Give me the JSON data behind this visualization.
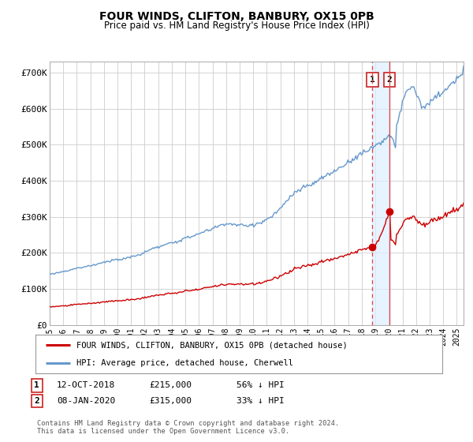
{
  "title": "FOUR WINDS, CLIFTON, BANBURY, OX15 0PB",
  "subtitle": "Price paid vs. HM Land Registry's House Price Index (HPI)",
  "ylabel_ticks": [
    "£0",
    "£100K",
    "£200K",
    "£300K",
    "£400K",
    "£500K",
    "£600K",
    "£700K"
  ],
  "ytick_values": [
    0,
    100000,
    200000,
    300000,
    400000,
    500000,
    600000,
    700000
  ],
  "ylim": [
    0,
    730000
  ],
  "xlim_start": 1995.0,
  "xlim_end": 2025.5,
  "xtick_years": [
    1995,
    1996,
    1997,
    1998,
    1999,
    2000,
    2001,
    2002,
    2003,
    2004,
    2005,
    2006,
    2007,
    2008,
    2009,
    2010,
    2011,
    2012,
    2013,
    2014,
    2015,
    2016,
    2017,
    2018,
    2019,
    2020,
    2021,
    2022,
    2023,
    2024,
    2025
  ],
  "hpi_color": "#6699cc",
  "price_color": "#cc0000",
  "marker1_date": 2018.78,
  "marker1_price": 215000,
  "marker2_date": 2020.03,
  "marker2_price": 315000,
  "vline_color": "#dd4444",
  "legend_label1": "FOUR WINDS, CLIFTON, BANBURY, OX15 0PB (detached house)",
  "legend_label2": "HPI: Average price, detached house, Cherwell",
  "note1_label": "1",
  "note1_date": "12-OCT-2018",
  "note1_price": "£215,000",
  "note1_hpi": "56% ↓ HPI",
  "note2_label": "2",
  "note2_date": "08-JAN-2020",
  "note2_price": "£315,000",
  "note2_hpi": "33% ↓ HPI",
  "footer": "Contains HM Land Registry data © Crown copyright and database right 2024.\nThis data is licensed under the Open Government Licence v3.0.",
  "background_color": "#ffffff",
  "grid_color": "#cccccc"
}
